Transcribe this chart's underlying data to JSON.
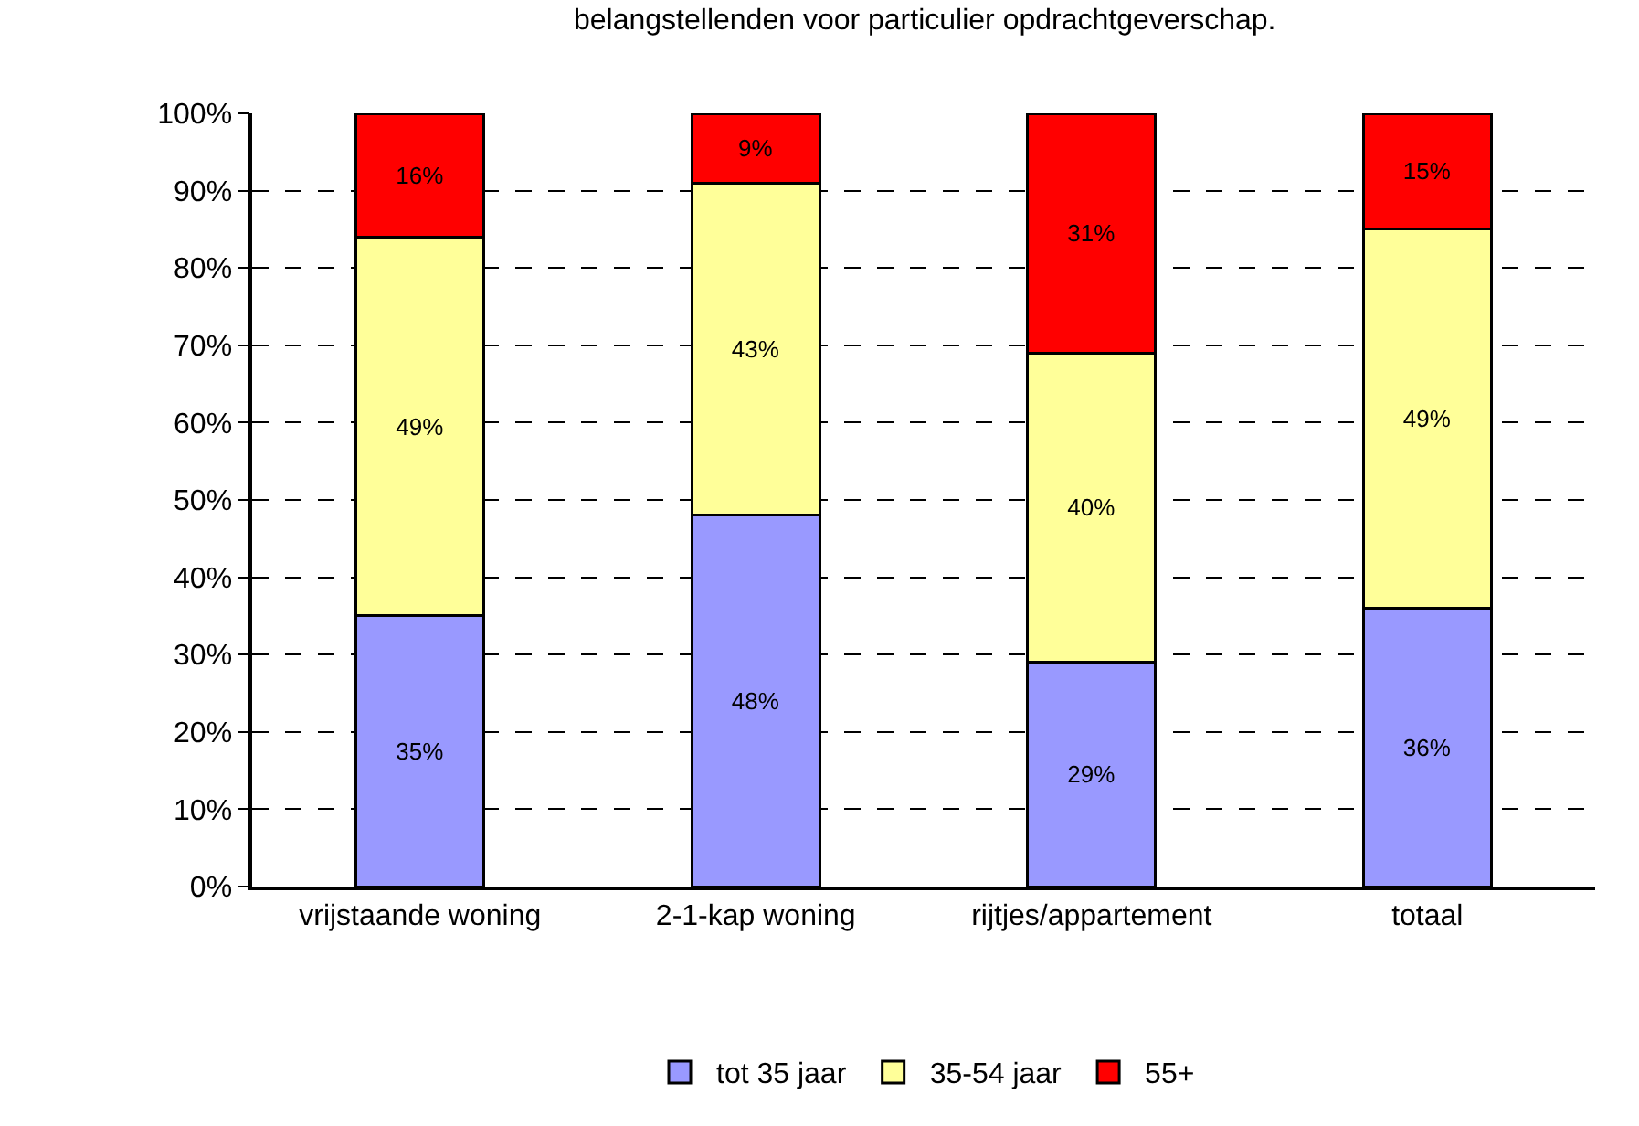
{
  "chart_data": {
    "type": "bar",
    "stacked": true,
    "annotations": [
      "belangstellenden voor particulier opdrachtgeverschap."
    ],
    "categories": [
      "vrijstaande woning",
      "2-1-kap woning",
      "rijtjes/appartement",
      "totaal"
    ],
    "series": [
      {
        "name": "tot 35 jaar",
        "color": "#9999ff",
        "values": [
          35,
          48,
          29,
          36
        ],
        "value_labels": [
          "35%",
          "48%",
          "29%",
          "36%"
        ]
      },
      {
        "name": "35-54 jaar",
        "color": "#ffff99",
        "values": [
          49,
          43,
          40,
          49
        ],
        "value_labels": [
          "49%",
          "43%",
          "40%",
          "49%"
        ]
      },
      {
        "name": "55+",
        "color": "#ff0000",
        "values": [
          16,
          9,
          31,
          15
        ],
        "value_labels": [
          "16%",
          "9%",
          "31%",
          "15%"
        ]
      }
    ],
    "ylim": [
      0,
      100
    ],
    "yticks": [
      {
        "value": 0,
        "label": "0%"
      },
      {
        "value": 10,
        "label": "10%"
      },
      {
        "value": 20,
        "label": "20%"
      },
      {
        "value": 30,
        "label": "30%"
      },
      {
        "value": 40,
        "label": "40%"
      },
      {
        "value": 50,
        "label": "50%"
      },
      {
        "value": 60,
        "label": "60%"
      },
      {
        "value": 70,
        "label": "70%"
      },
      {
        "value": 80,
        "label": "80%"
      },
      {
        "value": 90,
        "label": "90%"
      },
      {
        "value": 100,
        "label": "100%"
      }
    ],
    "grid": "y",
    "legend": "bottom"
  }
}
